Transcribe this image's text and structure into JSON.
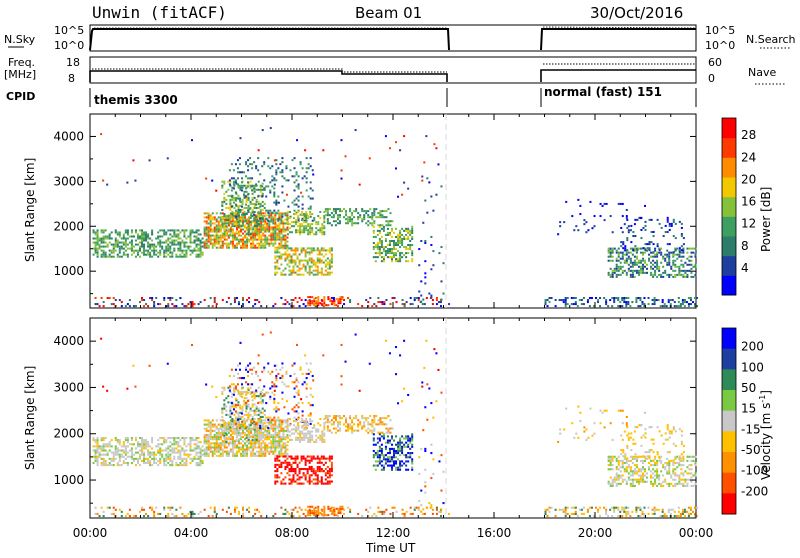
{
  "header": {
    "title": "Unwin (fitACF)",
    "beam": "Beam 01",
    "date": "30/Oct/2016"
  },
  "left_labels": {
    "nsky": "N.Sky",
    "nsky_ticks": [
      "10^5",
      "10^0"
    ],
    "freq_line1": "Freq.",
    "freq_line2": "[MHz]",
    "freq_ticks": [
      "18",
      "8"
    ],
    "cpid": "CPID"
  },
  "right_labels": {
    "nsearch": "N.Search",
    "nsearch_ticks": [
      "10^5",
      "10^0"
    ],
    "nave": "Nave",
    "nave_ticks": [
      "60",
      "0"
    ]
  },
  "cpid_bar": {
    "left_mode": "themis 3300",
    "right_mode": "normal (fast) 151"
  },
  "colors": {
    "power_scale": [
      "#0000ff",
      "#1f3f9f",
      "#2e7d6b",
      "#3ea060",
      "#86c13a",
      "#f2c800",
      "#ff8c00",
      "#ff3a00",
      "#ff0000"
    ],
    "velocity_scale": [
      "#0000ff",
      "#1f3fa0",
      "#2e8b57",
      "#7ac943",
      "#c8c8c8",
      "#ffc000",
      "#ff9000",
      "#ff5000",
      "#ff0000"
    ]
  },
  "chart_data": [
    {
      "type": "line",
      "panel": "N.Sky / N.Search",
      "x_unit": "hours UT",
      "xlim": [
        0,
        24
      ],
      "ylim_label": [
        "10^0",
        "10^5"
      ],
      "series": [
        {
          "segments": [
            [
              0,
              14.3
            ],
            [
              18,
              24
            ]
          ],
          "level": "near 10^5"
        }
      ]
    },
    {
      "type": "line",
      "panel": "Freq. [MHz] / Nave",
      "x_unit": "hours UT",
      "xlim": [
        0,
        24
      ],
      "ylim_left": [
        8,
        18
      ],
      "ylim_right": [
        0,
        60
      ],
      "series": [
        {
          "x": [
            0,
            0.3,
            0.3,
            9.9,
            9.9,
            14.3
          ],
          "y": [
            8,
            8,
            11.5,
            11.5,
            10.5,
            10.5
          ]
        },
        {
          "x": [
            18,
            24
          ],
          "y": [
            11,
            11
          ]
        },
        {
          "x": [
            0.3,
            9.9,
            9.9,
            14.3,
            18,
            24
          ],
          "y": [
            11.6,
            11.6,
            11.0,
            11.0,
            12.5,
            12.5
          ],
          "style": "dotted"
        }
      ]
    },
    {
      "type": "heatmap",
      "panel": "Power",
      "ylabel": "Slant Range [km]",
      "yticks": [
        "1000",
        "2000",
        "3000",
        "4000"
      ],
      "xticks": [
        "00:00",
        "04:00",
        "08:00",
        "12:00",
        "16:00",
        "20:00",
        "00:00"
      ],
      "xlim": [
        0,
        24
      ],
      "ylim": [
        180,
        4500
      ],
      "colorbar_label": "Power [dB]",
      "colorbar_ticks": [
        "4",
        "8",
        "12",
        "16",
        "20",
        "24",
        "28"
      ]
    },
    {
      "type": "heatmap",
      "panel": "Velocity",
      "ylabel": "Slant Range [km]",
      "yticks": [
        "1000",
        "2000",
        "3000",
        "4000"
      ],
      "xticks": [
        "00:00",
        "04:00",
        "08:00",
        "12:00",
        "16:00",
        "20:00",
        "00:00"
      ],
      "xlabel": "Time UT",
      "xlim": [
        0,
        24
      ],
      "ylim": [
        180,
        4500
      ],
      "colorbar_label": "Velocity [m s",
      "colorbar_label_sup": "-1",
      "colorbar_label_end": "]",
      "colorbar_ticks": [
        "200",
        "100",
        "50",
        "15",
        "-15",
        "-50",
        "-100",
        "-200"
      ]
    }
  ]
}
